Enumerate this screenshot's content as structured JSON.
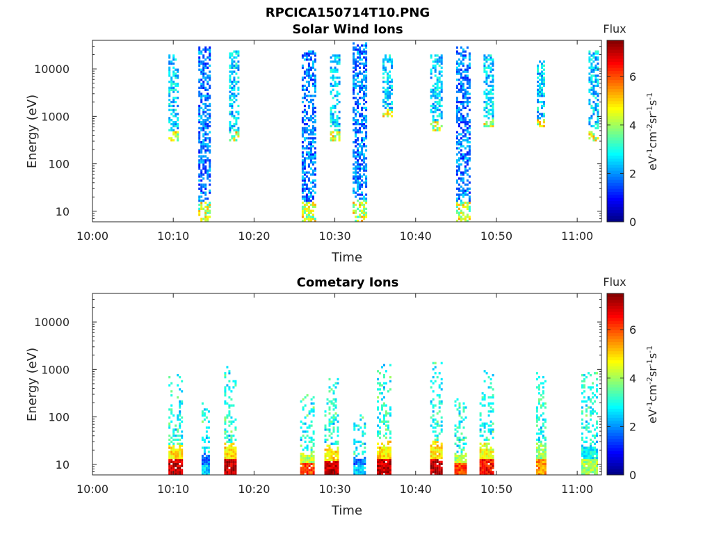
{
  "figure_title": "RPCICA150714T10.PNG",
  "colormap": [
    "#00007f",
    "#0000ff",
    "#007fff",
    "#00ffff",
    "#7fff7f",
    "#ffff00",
    "#ff7f00",
    "#ff0000",
    "#7f0000"
  ],
  "chart_data": [
    {
      "type": "heatmap",
      "title": "Solar Wind Ions",
      "xlabel": "Time",
      "ylabel": "Energy (eV)",
      "x_ticks": [
        "10:00",
        "10:10",
        "10:20",
        "10:30",
        "10:40",
        "10:50",
        "11:00"
      ],
      "xlim_minutes": [
        0,
        63
      ],
      "y_scale": "log",
      "ylim": [
        6,
        40000
      ],
      "y_ticks": [
        "10",
        "100",
        "1000",
        "10000"
      ],
      "colorbar": {
        "label_top": "Flux",
        "label_side": "eV-1cm-2sr-1s-1",
        "ticks": [
          "0",
          "2",
          "4",
          "6"
        ],
        "range": [
          0,
          7.5
        ]
      },
      "bursts": [
        {
          "t": 10.0,
          "emin": 300,
          "emax": 20000,
          "level": 2.5,
          "width": 1.2
        },
        {
          "t": 13.8,
          "emin": 6,
          "emax": 30000,
          "level": 1.8,
          "width": 1.4
        },
        {
          "t": 17.5,
          "emin": 300,
          "emax": 25000,
          "level": 2.5,
          "width": 1.2
        },
        {
          "t": 26.7,
          "emin": 6,
          "emax": 25000,
          "level": 1.8,
          "width": 1.6
        },
        {
          "t": 30.0,
          "emin": 300,
          "emax": 20000,
          "level": 2.5,
          "width": 1.2
        },
        {
          "t": 33.0,
          "emin": 6,
          "emax": 35000,
          "level": 1.8,
          "width": 1.6
        },
        {
          "t": 36.5,
          "emin": 1000,
          "emax": 20000,
          "level": 2.5,
          "width": 1.2
        },
        {
          "t": 42.5,
          "emin": 500,
          "emax": 20000,
          "level": 2.5,
          "width": 1.4
        },
        {
          "t": 45.8,
          "emin": 6,
          "emax": 30000,
          "level": 1.8,
          "width": 1.6
        },
        {
          "t": 49.0,
          "emin": 600,
          "emax": 20000,
          "level": 2.5,
          "width": 1.2
        },
        {
          "t": 55.5,
          "emin": 600,
          "emax": 15000,
          "level": 2.5,
          "width": 1.0
        },
        {
          "t": 62.0,
          "emin": 300,
          "emax": 25000,
          "level": 2.5,
          "width": 1.2
        }
      ]
    },
    {
      "type": "heatmap",
      "title": "Cometary Ions",
      "xlabel": "Time",
      "ylabel": "Energy (eV)",
      "x_ticks": [
        "10:00",
        "10:10",
        "10:20",
        "10:30",
        "10:40",
        "10:50",
        "11:00"
      ],
      "xlim_minutes": [
        0,
        63
      ],
      "y_scale": "log",
      "ylim": [
        6,
        40000
      ],
      "y_ticks": [
        "10",
        "100",
        "1000",
        "10000"
      ],
      "colorbar": {
        "label_top": "Flux",
        "label_side": "eV-1cm-2sr-1s-1",
        "ticks": [
          "0",
          "2",
          "4",
          "6"
        ],
        "range": [
          0,
          7.5
        ]
      },
      "bursts": [
        {
          "t": 10.2,
          "emin": 6,
          "emax": 800,
          "level": 7.0,
          "width": 1.6
        },
        {
          "t": 14.0,
          "emin": 6,
          "emax": 200,
          "level": 2.5,
          "width": 1.0
        },
        {
          "t": 17.0,
          "emin": 6,
          "emax": 1200,
          "level": 7.0,
          "width": 1.4
        },
        {
          "t": 26.5,
          "emin": 6,
          "emax": 300,
          "level": 6.0,
          "width": 1.6
        },
        {
          "t": 29.5,
          "emin": 6,
          "emax": 700,
          "level": 7.0,
          "width": 1.6
        },
        {
          "t": 33.0,
          "emin": 6,
          "emax": 150,
          "level": 2.5,
          "width": 1.4
        },
        {
          "t": 36.0,
          "emin": 6,
          "emax": 1400,
          "level": 7.0,
          "width": 1.6
        },
        {
          "t": 42.5,
          "emin": 6,
          "emax": 1400,
          "level": 7.0,
          "width": 1.4
        },
        {
          "t": 45.5,
          "emin": 6,
          "emax": 250,
          "level": 6.0,
          "width": 1.4
        },
        {
          "t": 48.8,
          "emin": 6,
          "emax": 1000,
          "level": 6.5,
          "width": 1.8
        },
        {
          "t": 55.5,
          "emin": 6,
          "emax": 1100,
          "level": 5.5,
          "width": 1.2
        },
        {
          "t": 61.5,
          "emin": 6,
          "emax": 1000,
          "level": 4.0,
          "width": 2.0
        }
      ]
    }
  ]
}
